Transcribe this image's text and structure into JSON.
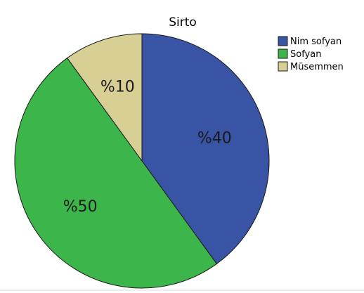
{
  "chart_data": {
    "type": "pie",
    "title": "Sirto",
    "categories": [
      "Nim sofyan",
      "Sofyan",
      "Müsemmen"
    ],
    "values": [
      40,
      50,
      10
    ],
    "slice_labels": [
      "%40",
      "%50",
      "%10"
    ],
    "colors": [
      "#3953a5",
      "#3cb54a",
      "#d8cf95"
    ],
    "legend_position": "top-right",
    "start_angle_deg": 0,
    "direction": "clockwise"
  }
}
